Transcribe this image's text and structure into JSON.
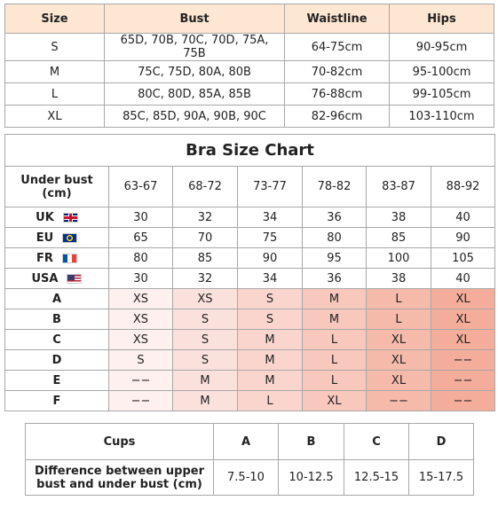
{
  "size_table": {
    "header": [
      "Size",
      "Bust",
      "Waistline",
      "Hips"
    ],
    "rows": [
      [
        "S",
        "65D, 70B, 70C, 70D, 75A, 75B",
        "64-75cm",
        "90-95cm"
      ],
      [
        "M",
        "75C, 75D, 80A, 80B",
        "70-82cm",
        "95-100cm"
      ],
      [
        "L",
        "80C, 80D, 85A, 85B",
        "76-88cm",
        "99-105cm"
      ],
      [
        "XL",
        "85C, 85D, 90A, 90B, 90C",
        "82-96cm",
        "103-110cm"
      ]
    ]
  },
  "bra_chart": {
    "title": "Bra Size Chart",
    "header": [
      "Under bust (cm)",
      "63-67",
      "68-72",
      "73-77",
      "78-82",
      "83-87",
      "88-92"
    ],
    "rows": [
      [
        "UK",
        30,
        32,
        34,
        36,
        38,
        40
      ],
      [
        "EU",
        65,
        70,
        75,
        80,
        85,
        90
      ],
      [
        "FR",
        80,
        85,
        90,
        95,
        100,
        105
      ],
      [
        "USA",
        30,
        32,
        34,
        36,
        38,
        40
      ],
      [
        "A",
        "XS",
        "XS",
        "S",
        "M",
        "L",
        "XL"
      ],
      [
        "B",
        "XS",
        "S",
        "S",
        "M",
        "L",
        "XL"
      ],
      [
        "C",
        "XS",
        "S",
        "M",
        "L",
        "XL",
        "XL"
      ],
      [
        "D",
        "S",
        "S",
        "M",
        "L",
        "XL",
        "−−"
      ],
      [
        "E",
        "−−",
        "M",
        "M",
        "L",
        "XL",
        "−−"
      ],
      [
        "F",
        "−−",
        "M",
        "L",
        "XL",
        "−−",
        "−−"
      ]
    ]
  },
  "cup_table": {
    "header": [
      "Cups",
      "A",
      "B",
      "C",
      "D"
    ],
    "rows": [
      [
        "Difference between upper bust and under bust (cm)",
        "7.5-10",
        "10-12.5",
        "12.5-15",
        "15-17.5"
      ]
    ]
  }
}
